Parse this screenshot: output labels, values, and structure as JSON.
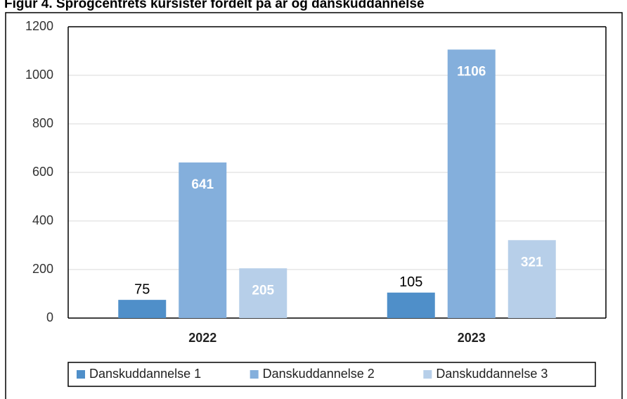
{
  "chart_data": {
    "type": "bar",
    "title": "Figur 4. Sprogcentrets kursister fordelt på år og danskuddannelse",
    "categories": [
      "2022",
      "2023"
    ],
    "series": [
      {
        "name": "Danskuddannelse 1",
        "color": "#4f8fc9",
        "label_color": "#000000",
        "values": [
          75,
          105
        ]
      },
      {
        "name": "Danskuddannelse 2",
        "color": "#84afdc",
        "label_color": "#ffffff",
        "values": [
          641,
          1106
        ]
      },
      {
        "name": "Danskuddannelse 3",
        "color": "#b7cfe9",
        "label_color": "#ffffff",
        "values": [
          205,
          321
        ]
      }
    ],
    "ylim": [
      0,
      1200
    ],
    "yticks": [
      0,
      200,
      400,
      600,
      800,
      1000,
      1200
    ],
    "grid": true,
    "legend": "bottom"
  }
}
